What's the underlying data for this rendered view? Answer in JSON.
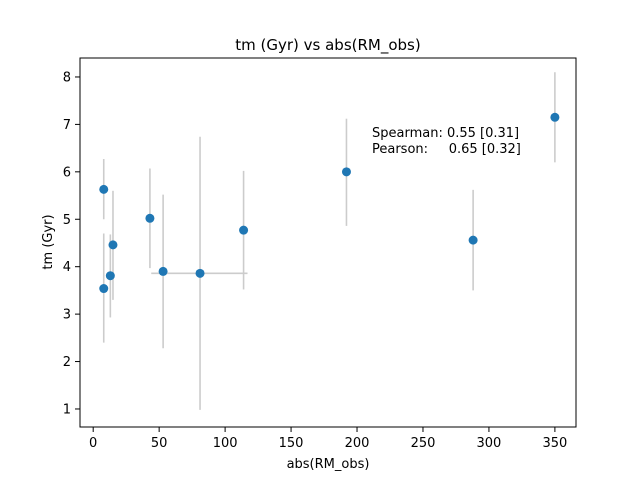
{
  "chart_data": {
    "type": "scatter",
    "title": "tm (Gyr) vs abs(RM_obs)",
    "xlabel": "abs(RM_obs)",
    "ylabel": "tm (Gyr)",
    "xlim": [
      -10,
      366
    ],
    "ylim": [
      0.62,
      8.4
    ],
    "xticks": [
      0,
      50,
      100,
      150,
      200,
      250,
      300,
      350
    ],
    "yticks": [
      1,
      2,
      3,
      4,
      5,
      6,
      7,
      8
    ],
    "grid": false,
    "point_color": "#1f77b4",
    "errorbar_color": "#cccccc",
    "points": [
      {
        "x": 8,
        "y": 5.63,
        "ylo": 5.0,
        "yhi": 6.27
      },
      {
        "x": 8,
        "y": 3.54,
        "ylo": 2.4,
        "yhi": 4.7
      },
      {
        "x": 13,
        "y": 3.81,
        "ylo": 2.93,
        "yhi": 4.68
      },
      {
        "x": 15,
        "y": 4.46,
        "ylo": 3.3,
        "yhi": 5.6
      },
      {
        "x": 43,
        "y": 5.02,
        "ylo": 3.97,
        "yhi": 6.07
      },
      {
        "x": 53,
        "y": 3.9,
        "ylo": 2.28,
        "yhi": 5.52
      },
      {
        "x": 81,
        "y": 3.86,
        "ylo": 0.98,
        "yhi": 6.74,
        "xlo": 44,
        "xhi": 117
      },
      {
        "x": 114,
        "y": 4.77,
        "ylo": 3.52,
        "yhi": 6.02
      },
      {
        "x": 192,
        "y": 6.0,
        "ylo": 4.86,
        "yhi": 7.12
      },
      {
        "x": 288,
        "y": 4.56,
        "ylo": 3.5,
        "yhi": 5.62
      },
      {
        "x": 350,
        "y": 7.15,
        "ylo": 6.2,
        "yhi": 8.1
      }
    ],
    "annotations": [
      {
        "text": "Spearman: 0.55 [0.31]"
      },
      {
        "text": "Pearson:     0.65 [0.32]"
      }
    ]
  }
}
